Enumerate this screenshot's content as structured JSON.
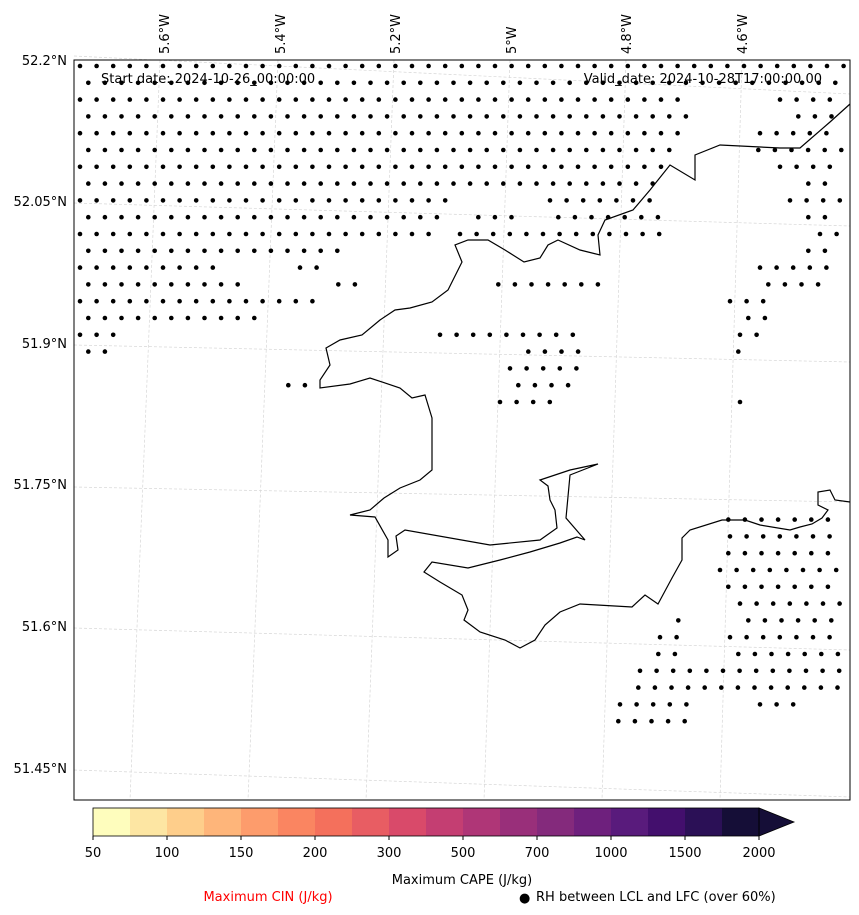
{
  "header": {
    "start_date": "Start date: 2024-10-26_00:00:00",
    "valid_date": "Valid_date: 2024-10-28T17:00:00.00"
  },
  "map": {
    "lon_labels": [
      "5.6°W",
      "5.4°W",
      "5.2°W",
      "5°W",
      "4.8°W",
      "4.6°W"
    ],
    "lat_labels": [
      "52.2°N",
      "52.05°N",
      "51.9°N",
      "51.75°N",
      "51.6°N",
      "51.45°N"
    ]
  },
  "colorbar": {
    "ticks": [
      "50",
      "100",
      "150",
      "200",
      "300",
      "500",
      "700",
      "1000",
      "1500",
      "2000"
    ],
    "label": "Maximum CAPE (J/kg)",
    "colors": [
      "#fefdbd",
      "#fde6a3",
      "#fece8b",
      "#feb57a",
      "#fd9c6c",
      "#fa8561",
      "#f4705c",
      "#e85d63",
      "#d94a6a",
      "#c43e72",
      "#af3677",
      "#992f7a",
      "#842a7c",
      "#6e207d",
      "#591b7c",
      "#430f6d",
      "#2b1056",
      "#150e37"
    ]
  },
  "legend": {
    "cin_label": "Maximum CIN (J/kg)",
    "cin_color": "#ff0000",
    "rh_marker": "●",
    "rh_label": "RH between LCL and LFC (over 60%)"
  }
}
